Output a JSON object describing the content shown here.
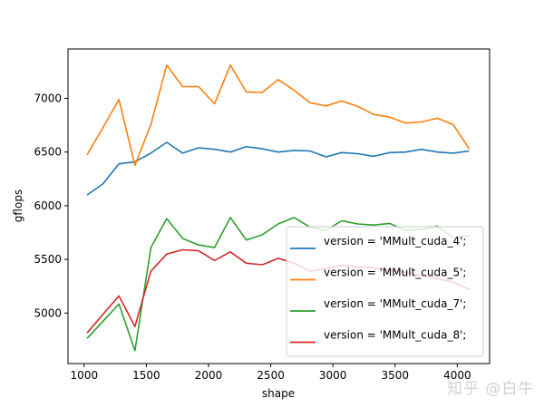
{
  "chart_data": {
    "type": "line",
    "title": "",
    "xlabel": "shape",
    "ylabel": "gflops",
    "xlim": [
      870,
      4260
    ],
    "ylim": [
      4530,
      7460
    ],
    "xticks": [
      1000,
      1500,
      2000,
      2500,
      3000,
      3500,
      4000
    ],
    "yticks": [
      5000,
      5500,
      6000,
      6500,
      7000
    ],
    "grid": false,
    "legend_position": "lower right",
    "x": [
      1024,
      1152,
      1280,
      1408,
      1536,
      1664,
      1792,
      1920,
      2048,
      2176,
      2304,
      2432,
      2560,
      2688,
      2816,
      2944,
      3072,
      3200,
      3328,
      3456,
      3584,
      3712,
      3840,
      3968,
      4096
    ],
    "series": [
      {
        "name": "version = 'MMult_cuda_4';",
        "color": "#1f77b4",
        "values": [
          6100,
          6205,
          6390,
          6410,
          6490,
          6590,
          6490,
          6540,
          6525,
          6500,
          6550,
          6530,
          6500,
          6515,
          6510,
          6455,
          6495,
          6485,
          6460,
          6495,
          6500,
          6525,
          6500,
          6490,
          6510
        ]
      },
      {
        "name": "version = 'MMult_cuda_5';",
        "color": "#ff7f0e",
        "values": [
          6475,
          6730,
          6990,
          6375,
          6755,
          7310,
          7110,
          7110,
          6950,
          7310,
          7060,
          7055,
          7175,
          7075,
          6960,
          6930,
          6975,
          6925,
          6850,
          6825,
          6770,
          6780,
          6815,
          6755,
          6530
        ]
      },
      {
        "name": "version = 'MMult_cuda_7';",
        "color": "#2ca02c",
        "values": [
          4765,
          4925,
          5085,
          4650,
          5610,
          5880,
          5695,
          5635,
          5610,
          5890,
          5680,
          5730,
          5830,
          5890,
          5800,
          5770,
          5860,
          5830,
          5820,
          5835,
          5770,
          5780,
          5810,
          5700,
          5720
        ]
      },
      {
        "name": "version = 'MMult_cuda_8';",
        "color": "#d62728",
        "values": [
          4815,
          4990,
          5160,
          4875,
          5390,
          5550,
          5590,
          5580,
          5490,
          5570,
          5465,
          5450,
          5510,
          5465,
          5390,
          5415,
          5445,
          5430,
          5420,
          5400,
          5380,
          5350,
          5320,
          5290,
          5220
        ]
      }
    ]
  },
  "watermark": "知乎 @白牛"
}
